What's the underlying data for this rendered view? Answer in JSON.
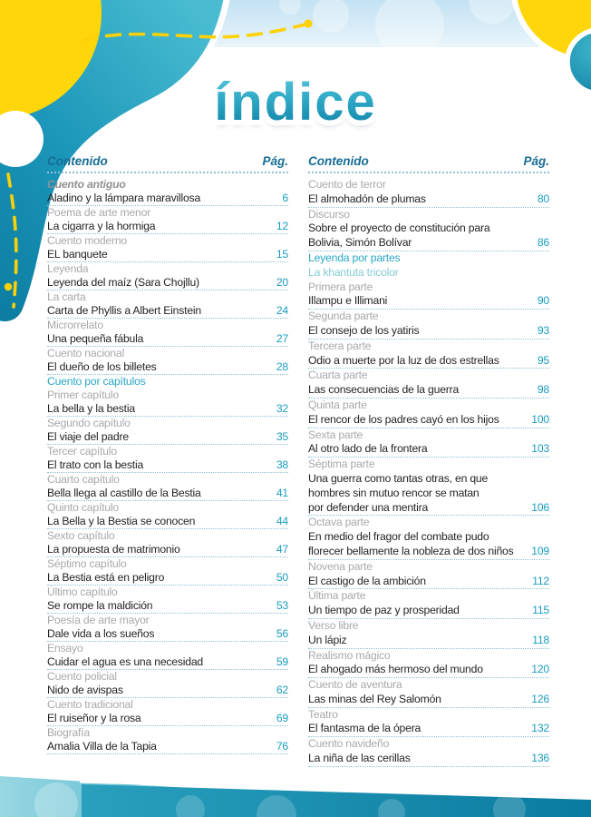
{
  "title": "índice",
  "palette": {
    "accent_teal": "#1a9dc0",
    "header_blue": "#176d94",
    "category_gray": "#a7a9ac",
    "category_teal": "#2aa7c4",
    "decor_yellow": "#ffd60a",
    "decor_teal_dark": "#0c7ba0",
    "decor_teal_light": "#49bcd1"
  },
  "columns": [
    {
      "header": {
        "content_label": "Contenido",
        "page_label": "Pág."
      },
      "entries": [
        {
          "type": "category",
          "style": "lead",
          "text": "Cuento antiguo"
        },
        {
          "type": "item",
          "text": "Aladino y la lámpara maravillosa",
          "page": "6"
        },
        {
          "type": "category",
          "text": "Poema de arte menor"
        },
        {
          "type": "item",
          "text": "La cigarra y la hormiga",
          "page": "12"
        },
        {
          "type": "category",
          "text": "Cuento moderno"
        },
        {
          "type": "item",
          "text": "EL banquete",
          "page": "15"
        },
        {
          "type": "category",
          "text": "Leyenda"
        },
        {
          "type": "item",
          "text": "Leyenda del maíz (Sara Chojllu)",
          "page": "20"
        },
        {
          "type": "category",
          "text": "La carta"
        },
        {
          "type": "item",
          "text": "Carta de Phyllis a Albert Einstein",
          "page": "24"
        },
        {
          "type": "category",
          "text": "Microrrelato"
        },
        {
          "type": "item",
          "text": "Una pequeña fábula",
          "page": "27"
        },
        {
          "type": "category",
          "text": "Cuento nacional"
        },
        {
          "type": "item",
          "text": "El dueño de los billetes",
          "page": "28"
        },
        {
          "type": "category",
          "style": "teal",
          "text": "Cuento por capítulos"
        },
        {
          "type": "category",
          "text": "Primer capítulo"
        },
        {
          "type": "item",
          "text": "La bella y la bestia",
          "page": "32"
        },
        {
          "type": "category",
          "text": "Segundo capítulo"
        },
        {
          "type": "item",
          "text": "El viaje del padre",
          "page": "35"
        },
        {
          "type": "category",
          "text": "Tercer capítulo"
        },
        {
          "type": "item",
          "text": "El trato con la bestia",
          "page": "38"
        },
        {
          "type": "category",
          "text": "Cuarto capítulo"
        },
        {
          "type": "item",
          "text": "Bella llega al castillo de la Bestia",
          "page": "41"
        },
        {
          "type": "category",
          "text": "Quinto capítulo"
        },
        {
          "type": "item",
          "text": "La Bella y la Bestia se conocen",
          "page": "44"
        },
        {
          "type": "category",
          "text": "Sexto capítulo"
        },
        {
          "type": "item",
          "text": "La propuesta de matrimonio",
          "page": "47"
        },
        {
          "type": "category",
          "text": "Séptimo capítulo"
        },
        {
          "type": "item",
          "text": "La Bestia está en peligro",
          "page": "50"
        },
        {
          "type": "category",
          "text": "Último capítulo"
        },
        {
          "type": "item",
          "text": "Se rompe la maldición",
          "page": "53"
        },
        {
          "type": "category",
          "text": "Poesía de arte mayor"
        },
        {
          "type": "item",
          "text": "Dale vida a los sueños",
          "page": "56"
        },
        {
          "type": "category",
          "text": "Ensayo"
        },
        {
          "type": "item",
          "text": "Cuidar el agua es una necesidad",
          "page": "59"
        },
        {
          "type": "category",
          "text": "Cuento policial"
        },
        {
          "type": "item",
          "text": "Nido de avispas",
          "page": "62"
        },
        {
          "type": "category",
          "text": "Cuento tradicional"
        },
        {
          "type": "item",
          "text": "El ruiseñor y la rosa",
          "page": "69"
        },
        {
          "type": "category",
          "text": "Biografía"
        },
        {
          "type": "item",
          "text": "Amalia Villa de la Tapia",
          "page": "76"
        }
      ]
    },
    {
      "header": {
        "content_label": "Contenido",
        "page_label": "Pág."
      },
      "entries": [
        {
          "type": "category",
          "text": "Cuento de terror"
        },
        {
          "type": "item",
          "text": "El almohadón de plumas",
          "page": "80"
        },
        {
          "type": "category",
          "text": "Discurso"
        },
        {
          "type": "item",
          "text": "Sobre el proyecto de constitución para\nBolivia, Simón Bolívar",
          "page": "86"
        },
        {
          "type": "category",
          "style": "teal",
          "text": "Leyenda por partes"
        },
        {
          "type": "category",
          "style": "teal-light",
          "text": "La khantuta tricolor"
        },
        {
          "type": "category",
          "text": "Primera parte"
        },
        {
          "type": "item",
          "text": "Illampu e Illimani",
          "page": "90"
        },
        {
          "type": "category",
          "text": "Segunda parte"
        },
        {
          "type": "item",
          "text": "El consejo de los yatiris",
          "page": "93"
        },
        {
          "type": "category",
          "text": "Tercera parte"
        },
        {
          "type": "item",
          "text": "Odio a muerte por la luz de dos estrellas",
          "page": "95"
        },
        {
          "type": "category",
          "text": "Cuarta parte"
        },
        {
          "type": "item",
          "text": "Las consecuencias de la guerra",
          "page": "98"
        },
        {
          "type": "category",
          "text": "Quinta parte"
        },
        {
          "type": "item",
          "text": "El rencor de los padres cayó en los hijos",
          "page": "100"
        },
        {
          "type": "category",
          "text": "Sexta parte"
        },
        {
          "type": "item",
          "text": "Al otro lado de la frontera",
          "page": "103"
        },
        {
          "type": "category",
          "text": "Séptima parte"
        },
        {
          "type": "item",
          "text": "Una guerra como tantas otras, en que\nhombres sin mutuo rencor se matan\npor defender una mentira",
          "page": "106"
        },
        {
          "type": "category",
          "text": "Octava parte"
        },
        {
          "type": "item",
          "text": "En medio del fragor del combate pudo\nflorecer bellamente la nobleza de dos niños",
          "page": "109"
        },
        {
          "type": "category",
          "text": "Novena parte"
        },
        {
          "type": "item",
          "text": "El castigo de la ambición",
          "page": "112"
        },
        {
          "type": "category",
          "text": "Última parte"
        },
        {
          "type": "item",
          "text": "Un tiempo de paz y prosperidad",
          "page": "115"
        },
        {
          "type": "category",
          "text": "Verso libre"
        },
        {
          "type": "item",
          "text": "Un lápiz",
          "page": "118"
        },
        {
          "type": "category",
          "text": "Realismo mágico"
        },
        {
          "type": "item",
          "text": "El ahogado más hermoso del mundo",
          "page": "120"
        },
        {
          "type": "category",
          "text": "Cuento de aventura"
        },
        {
          "type": "item",
          "text": "Las minas del Rey Salomón",
          "page": "126"
        },
        {
          "type": "category",
          "text": "Teatro"
        },
        {
          "type": "item",
          "text": "El fantasma de la ópera",
          "page": "132"
        },
        {
          "type": "category",
          "text": "Cuento navideño"
        },
        {
          "type": "item",
          "text": "La niña de las cerillas",
          "page": "136"
        }
      ]
    }
  ]
}
